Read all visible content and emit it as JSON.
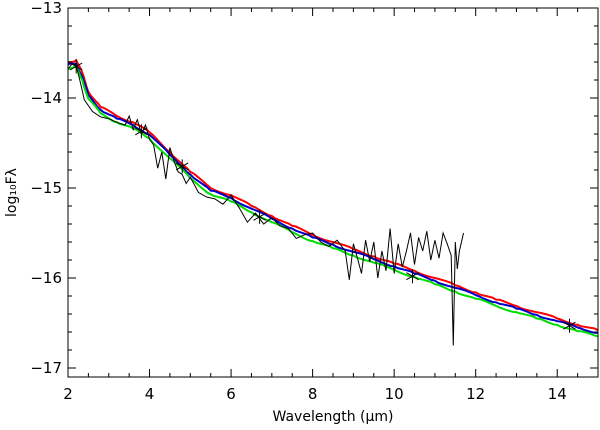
{
  "chart_data": {
    "type": "line",
    "title": "",
    "xlabel": "Wavelength (μm)",
    "ylabel": "log₁₀Fλ",
    "xlim": [
      2,
      15
    ],
    "ylim": [
      -17.1,
      -13
    ],
    "x_ticks": [
      2,
      4,
      6,
      8,
      10,
      12,
      14
    ],
    "x_tick_labels": [
      "2",
      "4",
      "6",
      "8",
      "10",
      "12",
      "14"
    ],
    "y_ticks": [
      -17,
      -16,
      -15,
      -14,
      -13
    ],
    "y_tick_labels": [
      "−17",
      "−16",
      "−15",
      "−14",
      "−13"
    ],
    "grid": false,
    "legend": "none",
    "colors": {
      "red": "#ff0000",
      "blue": "#0000cc",
      "green": "#00dd00",
      "black": "#000000"
    },
    "series": [
      {
        "color": "red",
        "x": [
          2.0,
          2.2,
          2.35,
          2.5,
          2.8,
          3.2,
          3.6,
          4.0,
          4.5,
          5.0,
          5.5,
          6.0,
          6.5,
          7.0,
          7.5,
          8.0,
          8.5,
          9.0,
          9.5,
          10.0,
          10.5,
          11.0,
          11.5,
          12.0,
          12.5,
          13.0,
          13.5,
          14.0,
          14.5,
          15.0
        ],
        "y": [
          -13.6,
          -13.58,
          -13.72,
          -13.93,
          -14.1,
          -14.2,
          -14.27,
          -14.38,
          -14.6,
          -14.82,
          -15.0,
          -15.08,
          -15.2,
          -15.31,
          -15.42,
          -15.52,
          -15.6,
          -15.68,
          -15.76,
          -15.84,
          -15.92,
          -16.0,
          -16.08,
          -16.16,
          -16.24,
          -16.31,
          -16.38,
          -16.45,
          -16.52,
          -16.58
        ]
      },
      {
        "color": "blue",
        "x": [
          2.0,
          2.2,
          2.35,
          2.5,
          2.8,
          3.2,
          3.6,
          4.0,
          4.5,
          5.0,
          5.5,
          6.0,
          6.5,
          7.0,
          7.5,
          8.0,
          8.5,
          9.0,
          9.5,
          10.0,
          10.5,
          11.0,
          11.5,
          12.0,
          12.5,
          13.0,
          13.5,
          14.0,
          14.5,
          15.0
        ],
        "y": [
          -13.63,
          -13.62,
          -13.76,
          -13.97,
          -14.13,
          -14.23,
          -14.3,
          -14.41,
          -14.63,
          -14.85,
          -15.03,
          -15.11,
          -15.23,
          -15.34,
          -15.45,
          -15.55,
          -15.63,
          -15.71,
          -15.79,
          -15.87,
          -15.95,
          -16.03,
          -16.11,
          -16.19,
          -16.27,
          -16.34,
          -16.41,
          -16.48,
          -16.55,
          -16.61
        ]
      },
      {
        "color": "green",
        "x": [
          2.0,
          2.2,
          2.35,
          2.5,
          2.8,
          3.2,
          3.6,
          4.0,
          4.5,
          5.0,
          5.5,
          6.0,
          6.5,
          7.0,
          7.5,
          8.0,
          8.5,
          9.0,
          9.5,
          10.0,
          10.5,
          11.0,
          11.5,
          12.0,
          12.5,
          13.0,
          13.5,
          14.0,
          14.5,
          15.0
        ],
        "y": [
          -13.67,
          -13.66,
          -13.8,
          -14.01,
          -14.17,
          -14.27,
          -14.34,
          -14.45,
          -14.67,
          -14.89,
          -15.07,
          -15.15,
          -15.27,
          -15.38,
          -15.49,
          -15.59,
          -15.67,
          -15.75,
          -15.83,
          -15.91,
          -15.99,
          -16.07,
          -16.15,
          -16.23,
          -16.31,
          -16.38,
          -16.45,
          -16.52,
          -16.59,
          -16.65
        ]
      },
      {
        "color": "black",
        "x": [
          2.0,
          2.1,
          2.2,
          2.3,
          2.4,
          2.6,
          2.8,
          3.0,
          3.2,
          3.4,
          3.5,
          3.6,
          3.7,
          3.8,
          3.9,
          4.0,
          4.1,
          4.2,
          4.3,
          4.4,
          4.5,
          4.6,
          4.7,
          4.8,
          4.9,
          5.0,
          5.2,
          5.4,
          5.6,
          5.8,
          6.0,
          6.2,
          6.4,
          6.6,
          6.8,
          7.0,
          7.2,
          7.4,
          7.6,
          7.8,
          8.0,
          8.2,
          8.4,
          8.6,
          8.8,
          8.9,
          9.0,
          9.1,
          9.2,
          9.3,
          9.4,
          9.5,
          9.6,
          9.7,
          9.8,
          9.9,
          10.0,
          10.1,
          10.2,
          10.3,
          10.4,
          10.5,
          10.6,
          10.7,
          10.8,
          10.9,
          11.0,
          11.1,
          11.2,
          11.3,
          11.4,
          11.45,
          11.5,
          11.55,
          11.6,
          11.7
        ],
        "y": [
          -13.68,
          -13.62,
          -13.64,
          -13.82,
          -14.02,
          -14.15,
          -14.21,
          -14.23,
          -14.27,
          -14.3,
          -14.2,
          -14.35,
          -14.24,
          -14.4,
          -14.3,
          -14.46,
          -14.52,
          -14.78,
          -14.6,
          -14.9,
          -14.55,
          -14.7,
          -14.82,
          -14.85,
          -14.95,
          -14.88,
          -15.05,
          -15.1,
          -15.12,
          -15.18,
          -15.08,
          -15.22,
          -15.38,
          -15.28,
          -15.4,
          -15.33,
          -15.42,
          -15.45,
          -15.56,
          -15.52,
          -15.5,
          -15.6,
          -15.65,
          -15.58,
          -15.7,
          -16.02,
          -15.62,
          -15.78,
          -15.95,
          -15.58,
          -15.82,
          -15.6,
          -16.0,
          -15.7,
          -15.92,
          -15.45,
          -15.95,
          -15.62,
          -15.88,
          -15.7,
          -15.5,
          -15.85,
          -15.55,
          -15.7,
          -15.48,
          -15.8,
          -15.58,
          -15.78,
          -15.5,
          -15.62,
          -15.75,
          -16.75,
          -15.6,
          -15.9,
          -15.7,
          -15.5
        ]
      }
    ],
    "markers": {
      "symbol": "asterisk",
      "color": "black",
      "x": [
        2.2,
        3.8,
        4.8,
        6.7,
        10.45,
        14.3
      ],
      "y": [
        -13.65,
        -14.37,
        -14.76,
        -15.32,
        -15.98,
        -16.53
      ]
    }
  }
}
